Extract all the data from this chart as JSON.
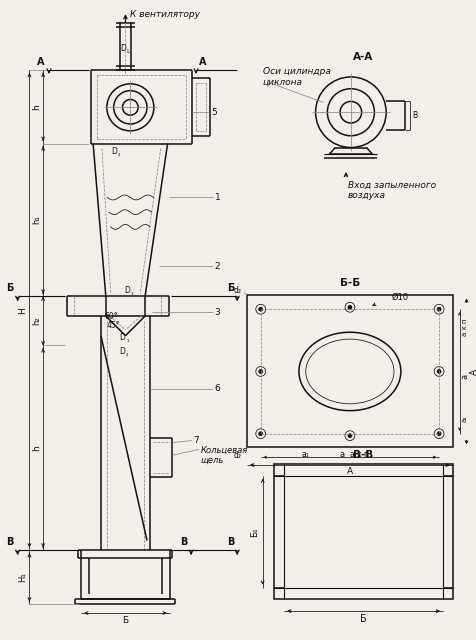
{
  "bg_color": "#f2efe9",
  "line_color": "#111111",
  "annotations": {
    "K_ventilyatoru": "К вентилятору",
    "Osi_tsylindra": "Оси цилиндра\nциклона",
    "Vkhod": "Вход запыленного\nвоздуха",
    "Koltsevaya": "Кольцевая\nщель",
    "AA": "А-А",
    "BB": "Б-Б",
    "VV": "В-В"
  }
}
